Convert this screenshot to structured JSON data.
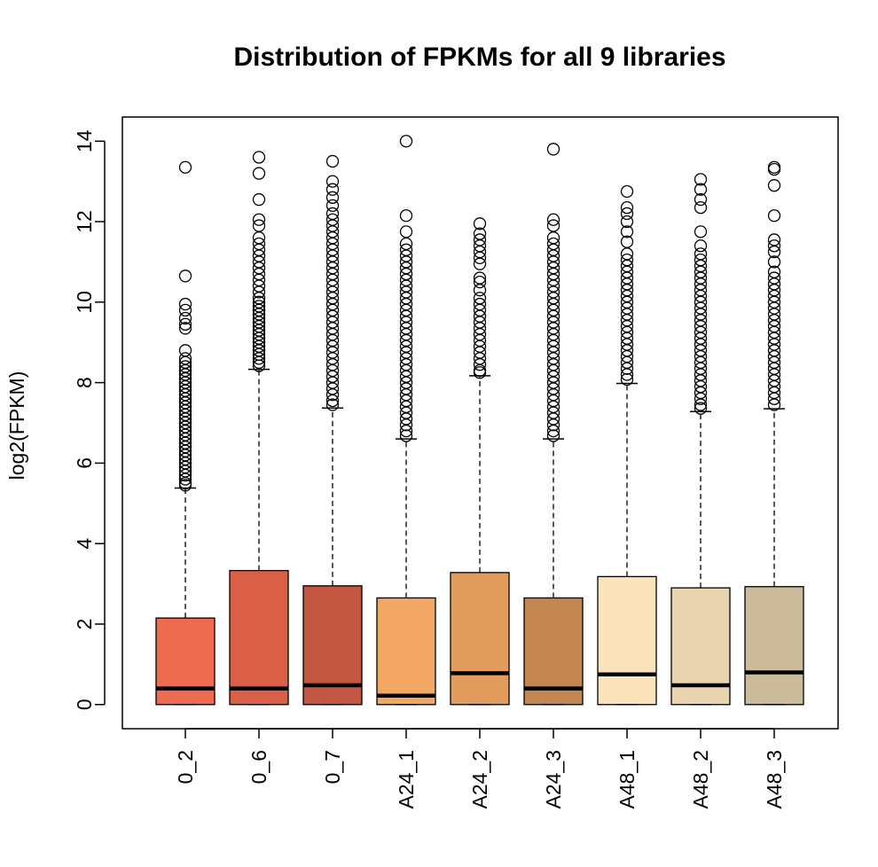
{
  "chart_data": {
    "type": "box",
    "title": "Distribution of FPKMs for all 9 libraries",
    "ylabel": "log2(FPKM)",
    "xlabel": "",
    "ylim": [
      -0.6,
      14.6
    ],
    "yticks": [
      0,
      2,
      4,
      6,
      8,
      10,
      12,
      14
    ],
    "grid": false,
    "categories": [
      "0_2",
      "0_6",
      "0_7",
      "A24_1",
      "A24_2",
      "A24_3",
      "A48_1",
      "A48_2",
      "A48_3"
    ],
    "boxes": [
      {
        "name": "0_2",
        "q1": 0,
        "median": 0.4,
        "q3": 2.15,
        "whisker_low": 0,
        "whisker_high": 5.38,
        "color": "#EE6B50",
        "outliers": [
          13.35,
          10.65,
          9.95,
          9.8,
          9.6,
          9.45,
          9.35,
          8.8,
          8.6,
          8.5,
          8.4,
          8.3,
          8.2,
          8.1,
          8.0,
          7.9,
          7.8,
          7.7,
          7.6,
          7.5,
          7.4,
          7.3,
          7.2,
          7.1,
          7.0,
          6.9,
          6.8,
          6.7,
          6.6,
          6.5,
          6.4,
          6.3,
          6.2,
          6.1,
          6.0,
          5.9,
          5.8,
          5.7,
          5.6,
          5.5,
          5.45
        ]
      },
      {
        "name": "0_6",
        "q1": 0,
        "median": 0.4,
        "q3": 3.33,
        "whisker_low": 0,
        "whisker_high": 8.33,
        "color": "#DB6048",
        "outliers": [
          13.6,
          13.2,
          12.55,
          12.05,
          11.9,
          11.6,
          11.45,
          11.3,
          11.15,
          11.0,
          10.85,
          10.7,
          10.55,
          10.4,
          10.25,
          10.1,
          10.0,
          9.9,
          9.8,
          9.7,
          9.6,
          9.5,
          9.4,
          9.3,
          9.2,
          9.1,
          9.0,
          8.9,
          8.8,
          8.7,
          8.6,
          8.5,
          8.42
        ]
      },
      {
        "name": "0_7",
        "q1": 0,
        "median": 0.48,
        "q3": 2.95,
        "whisker_low": 0,
        "whisker_high": 7.37,
        "color": "#C25640",
        "outliers": [
          13.5,
          13.0,
          12.8,
          12.6,
          12.4,
          12.2,
          12.05,
          11.9,
          11.75,
          11.6,
          11.45,
          11.3,
          11.15,
          11.0,
          10.85,
          10.7,
          10.55,
          10.4,
          10.25,
          10.1,
          9.95,
          9.8,
          9.65,
          9.5,
          9.35,
          9.2,
          9.05,
          8.9,
          8.75,
          8.6,
          8.45,
          8.3,
          8.15,
          8.0,
          7.85,
          7.7,
          7.55,
          7.45
        ]
      },
      {
        "name": "A24_1",
        "q1": 0,
        "median": 0.22,
        "q3": 2.65,
        "whisker_low": 0,
        "whisker_high": 6.6,
        "color": "#F3A765",
        "outliers": [
          14.0,
          12.15,
          11.75,
          11.45,
          11.3,
          11.15,
          11.0,
          10.85,
          10.7,
          10.55,
          10.4,
          10.25,
          10.1,
          9.95,
          9.8,
          9.65,
          9.5,
          9.35,
          9.2,
          9.05,
          8.9,
          8.75,
          8.6,
          8.45,
          8.3,
          8.15,
          8.0,
          7.85,
          7.7,
          7.55,
          7.4,
          7.25,
          7.1,
          6.95,
          6.8,
          6.68
        ]
      },
      {
        "name": "A24_2",
        "q1": 0,
        "median": 0.78,
        "q3": 3.28,
        "whisker_low": 0,
        "whisker_high": 8.17,
        "color": "#E19C5E",
        "outliers": [
          11.95,
          11.7,
          11.55,
          11.4,
          11.25,
          11.1,
          10.95,
          10.6,
          10.5,
          10.3,
          10.1,
          9.95,
          9.8,
          9.65,
          9.5,
          9.35,
          9.2,
          9.05,
          8.9,
          8.75,
          8.6,
          8.45,
          8.3,
          8.25
        ]
      },
      {
        "name": "A24_3",
        "q1": 0,
        "median": 0.4,
        "q3": 2.65,
        "whisker_low": 0,
        "whisker_high": 6.6,
        "color": "#C48650",
        "outliers": [
          13.8,
          12.05,
          11.9,
          11.6,
          11.45,
          11.3,
          11.15,
          11.0,
          10.85,
          10.7,
          10.55,
          10.4,
          10.25,
          10.1,
          9.95,
          9.8,
          9.65,
          9.5,
          9.35,
          9.2,
          9.05,
          8.9,
          8.75,
          8.6,
          8.45,
          8.3,
          8.15,
          8.0,
          7.85,
          7.7,
          7.55,
          7.4,
          7.25,
          7.1,
          6.95,
          6.8,
          6.68
        ]
      },
      {
        "name": "A48_1",
        "q1": 0,
        "median": 0.75,
        "q3": 3.18,
        "whisker_low": 0,
        "whisker_high": 7.98,
        "color": "#FBE4BC",
        "outliers": [
          12.75,
          12.35,
          12.2,
          12.0,
          11.75,
          11.5,
          11.2,
          11.05,
          10.9,
          10.75,
          10.6,
          10.45,
          10.3,
          10.15,
          10.0,
          9.85,
          9.7,
          9.55,
          9.4,
          9.25,
          9.1,
          8.95,
          8.8,
          8.65,
          8.5,
          8.35,
          8.2,
          8.08
        ]
      },
      {
        "name": "A48_2",
        "q1": 0,
        "median": 0.48,
        "q3": 2.9,
        "whisker_low": 0,
        "whisker_high": 7.28,
        "color": "#E8D5B0",
        "outliers": [
          13.05,
          12.8,
          12.55,
          12.35,
          11.75,
          11.4,
          11.2,
          11.05,
          10.9,
          10.75,
          10.6,
          10.45,
          10.3,
          10.15,
          10.0,
          9.85,
          9.7,
          9.55,
          9.4,
          9.25,
          9.1,
          8.95,
          8.8,
          8.65,
          8.5,
          8.35,
          8.2,
          8.05,
          7.9,
          7.75,
          7.6,
          7.45,
          7.36
        ]
      },
      {
        "name": "A48_3",
        "q1": 0,
        "median": 0.8,
        "q3": 2.93,
        "whisker_low": 0,
        "whisker_high": 7.35,
        "color": "#CBBB9A",
        "outliers": [
          13.35,
          13.3,
          12.9,
          12.15,
          11.55,
          11.4,
          11.25,
          11.0,
          10.75,
          10.6,
          10.45,
          10.3,
          10.15,
          10.0,
          9.85,
          9.7,
          9.55,
          9.4,
          9.25,
          9.1,
          8.95,
          8.8,
          8.65,
          8.5,
          8.35,
          8.2,
          8.05,
          7.9,
          7.75,
          7.6,
          7.45
        ]
      }
    ]
  }
}
